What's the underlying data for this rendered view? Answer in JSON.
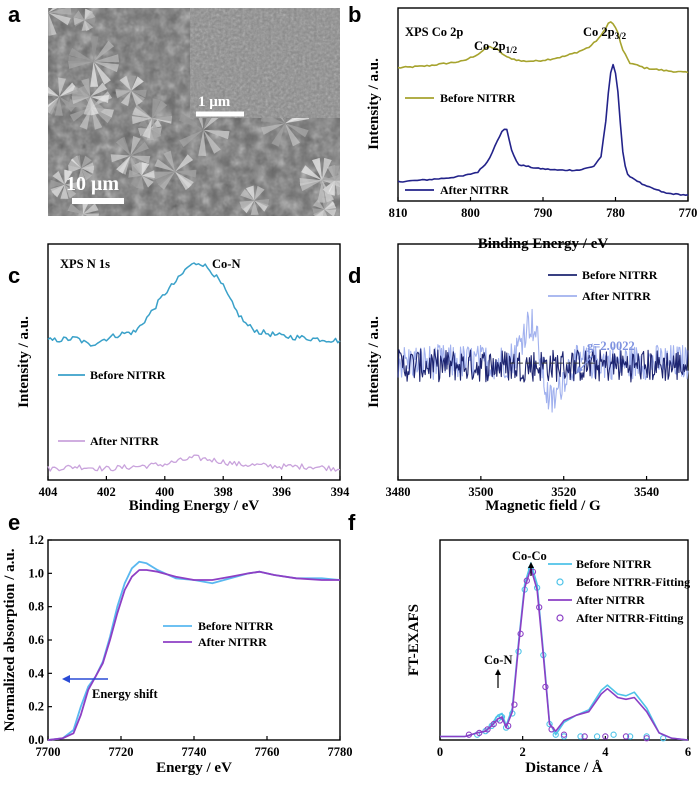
{
  "panel_labels": [
    "a",
    "b",
    "c",
    "d",
    "e",
    "f"
  ],
  "sem": {
    "main_scale": "10 μm",
    "inset_scale": "1 μm"
  },
  "chart_data": [
    {
      "id": "b",
      "type": "line",
      "title": "XPS Co 2p",
      "xlabel": "Binding Energy / eV",
      "ylabel": "Intensity / a.u.",
      "xlim": [
        810,
        770
      ],
      "xticks": [
        810,
        800,
        790,
        780,
        770
      ],
      "reversed_x": true,
      "annotations": [
        {
          "text": "Co 2p",
          "sub": "1/2",
          "x": 797
        },
        {
          "text": "Co 2p",
          "sub": "3/2",
          "x": 780.5
        }
      ],
      "series": [
        {
          "name": "Before NITRR",
          "color": "#a6a32e",
          "points": [
            [
              810,
              0.69
            ],
            [
              806,
              0.7
            ],
            [
              803,
              0.715
            ],
            [
              801,
              0.725
            ],
            [
              799,
              0.76
            ],
            [
              797.5,
              0.8
            ],
            [
              796.5,
              0.79
            ],
            [
              795,
              0.745
            ],
            [
              793,
              0.725
            ],
            [
              791,
              0.725
            ],
            [
              789,
              0.735
            ],
            [
              787,
              0.75
            ],
            [
              785,
              0.775
            ],
            [
              783.5,
              0.8
            ],
            [
              782,
              0.855
            ],
            [
              781,
              0.92
            ],
            [
              780.5,
              0.93
            ],
            [
              779.7,
              0.875
            ],
            [
              779,
              0.78
            ],
            [
              778,
              0.715
            ],
            [
              776,
              0.69
            ],
            [
              773,
              0.675
            ],
            [
              770,
              0.665
            ]
          ]
        },
        {
          "name": "After NITRR",
          "color": "#23238a",
          "points": [
            [
              810,
              0.1
            ],
            [
              806,
              0.11
            ],
            [
              803,
              0.12
            ],
            [
              801,
              0.13
            ],
            [
              799,
              0.15
            ],
            [
              797.5,
              0.21
            ],
            [
              796.5,
              0.3
            ],
            [
              795.5,
              0.37
            ],
            [
              795,
              0.37
            ],
            [
              794.3,
              0.26
            ],
            [
              793.5,
              0.19
            ],
            [
              791,
              0.17
            ],
            [
              788,
              0.16
            ],
            [
              785,
              0.16
            ],
            [
              783,
              0.18
            ],
            [
              782,
              0.23
            ],
            [
              781.3,
              0.42
            ],
            [
              780.8,
              0.65
            ],
            [
              780.2,
              0.72
            ],
            [
              779.6,
              0.55
            ],
            [
              779.1,
              0.28
            ],
            [
              778.5,
              0.14
            ],
            [
              776,
              0.08
            ],
            [
              773,
              0.04
            ],
            [
              770,
              0.03
            ]
          ]
        }
      ]
    },
    {
      "id": "c",
      "type": "line",
      "title": "XPS N 1s",
      "xlabel": "Binding Energy / eV",
      "ylabel": "Intensity / a.u.",
      "xlim": [
        404,
        394
      ],
      "xticks": [
        404,
        402,
        400,
        398,
        396,
        394
      ],
      "reversed_x": true,
      "annotations": [
        {
          "text": "Co-N",
          "x": 398.6
        }
      ],
      "series": [
        {
          "name": "Before NITRR",
          "color": "#3aa1c9",
          "points": [
            [
              404,
              0.62
            ],
            [
              403,
              0.63
            ],
            [
              402.6,
              0.6
            ],
            [
              402,
              0.63
            ],
            [
              401.5,
              0.65
            ],
            [
              401,
              0.66
            ],
            [
              400.5,
              0.74
            ],
            [
              400,
              0.83
            ],
            [
              399.5,
              0.9
            ],
            [
              399.2,
              0.95
            ],
            [
              398.8,
              0.97
            ],
            [
              398.4,
              0.93
            ],
            [
              398,
              0.86
            ],
            [
              397.6,
              0.76
            ],
            [
              397.2,
              0.69
            ],
            [
              396.8,
              0.66
            ],
            [
              396,
              0.64
            ],
            [
              395,
              0.63
            ],
            [
              394,
              0.62
            ]
          ]
        },
        {
          "name": "After NITRR",
          "color": "#c9a3dc",
          "points": [
            [
              404,
              0.05
            ],
            [
              403,
              0.06
            ],
            [
              402,
              0.05
            ],
            [
              401,
              0.06
            ],
            [
              400,
              0.07
            ],
            [
              399,
              0.1
            ],
            [
              398.4,
              0.09
            ],
            [
              397.5,
              0.07
            ],
            [
              396,
              0.06
            ],
            [
              395,
              0.06
            ],
            [
              394,
              0.05
            ]
          ]
        }
      ]
    },
    {
      "id": "d",
      "type": "line",
      "title": "",
      "xlabel": "Magnetic field / G",
      "ylabel": "Intensity / a.u.",
      "xlim": [
        3480,
        3550
      ],
      "xticks": [
        3480,
        3500,
        3520,
        3540
      ],
      "annotations": [
        {
          "text": "g=2.0022",
          "x": 3517
        }
      ],
      "series": [
        {
          "name": "Before NITRR",
          "color": "#1d2470",
          "description_value": "noisy"
        },
        {
          "name": "After NITRR",
          "color": "#a1b1ee",
          "description_value": "signal"
        }
      ]
    },
    {
      "id": "e",
      "type": "line",
      "title": "",
      "xlabel": "Energy / eV",
      "ylabel": "Normalized absorption / a.u.",
      "xlim": [
        7700,
        7780
      ],
      "ylim": [
        0.0,
        1.2
      ],
      "xticks": [
        7700,
        7720,
        7740,
        7760,
        7780
      ],
      "yticks": [
        "0.0",
        "0.2",
        "0.4",
        "0.6",
        "0.8",
        "1.0",
        "1.2"
      ],
      "annotations": [
        {
          "text": "Energy shift"
        }
      ],
      "series": [
        {
          "name": "Before NITRR",
          "color": "#5ab8f0",
          "points": [
            [
              7700,
              0.0
            ],
            [
              7704,
              0.01
            ],
            [
              7707,
              0.06
            ],
            [
              7709,
              0.2
            ],
            [
              7711,
              0.32
            ],
            [
              7713,
              0.38
            ],
            [
              7715,
              0.47
            ],
            [
              7717,
              0.62
            ],
            [
              7719,
              0.8
            ],
            [
              7721,
              0.94
            ],
            [
              7723,
              1.03
            ],
            [
              7725,
              1.07
            ],
            [
              7727,
              1.06
            ],
            [
              7730,
              1.02
            ],
            [
              7735,
              0.97
            ],
            [
              7740,
              0.96
            ],
            [
              7745,
              0.94
            ],
            [
              7750,
              0.97
            ],
            [
              7755,
              1.0
            ],
            [
              7758,
              1.01
            ],
            [
              7762,
              0.99
            ],
            [
              7768,
              0.97
            ],
            [
              7775,
              0.97
            ],
            [
              7780,
              0.96
            ]
          ]
        },
        {
          "name": "After NITRR",
          "color": "#8e3fc4",
          "points": [
            [
              7700,
              0.0
            ],
            [
              7704,
              0.01
            ],
            [
              7707,
              0.04
            ],
            [
              7709,
              0.15
            ],
            [
              7711,
              0.3
            ],
            [
              7713,
              0.38
            ],
            [
              7715,
              0.46
            ],
            [
              7717,
              0.6
            ],
            [
              7719,
              0.76
            ],
            [
              7721,
              0.9
            ],
            [
              7723,
              0.98
            ],
            [
              7725,
              1.02
            ],
            [
              7727,
              1.02
            ],
            [
              7730,
              1.01
            ],
            [
              7735,
              0.98
            ],
            [
              7740,
              0.96
            ],
            [
              7745,
              0.96
            ],
            [
              7750,
              0.98
            ],
            [
              7755,
              1.0
            ],
            [
              7758,
              1.01
            ],
            [
              7762,
              0.99
            ],
            [
              7768,
              0.97
            ],
            [
              7775,
              0.96
            ],
            [
              7780,
              0.96
            ]
          ]
        }
      ]
    },
    {
      "id": "f",
      "type": "line",
      "title": "",
      "xlabel": "Distance / Å",
      "ylabel": "FT-EXAFS",
      "xlim": [
        0,
        6
      ],
      "ylim": [
        0,
        1
      ],
      "xticks": [
        0,
        2,
        4,
        6
      ],
      "annotations": [
        {
          "text": "Co-Co",
          "x": 2.2
        },
        {
          "text": "Co-N",
          "x": 1.45
        }
      ],
      "series": [
        {
          "name": "Before NITRR",
          "color": "#4ec3e8",
          "style": "line",
          "points": [
            [
              0,
              0.02
            ],
            [
              0.6,
              0.02
            ],
            [
              0.9,
              0.04
            ],
            [
              1.1,
              0.05
            ],
            [
              1.25,
              0.09
            ],
            [
              1.4,
              0.14
            ],
            [
              1.5,
              0.15
            ],
            [
              1.6,
              0.08
            ],
            [
              1.75,
              0.18
            ],
            [
              1.9,
              0.55
            ],
            [
              2.05,
              0.88
            ],
            [
              2.2,
              1.0
            ],
            [
              2.35,
              0.88
            ],
            [
              2.5,
              0.5
            ],
            [
              2.65,
              0.1
            ],
            [
              2.8,
              0.03
            ],
            [
              3.0,
              0.1
            ],
            [
              3.3,
              0.14
            ],
            [
              3.6,
              0.17
            ],
            [
              3.9,
              0.28
            ],
            [
              4.05,
              0.31
            ],
            [
              4.3,
              0.26
            ],
            [
              4.5,
              0.25
            ],
            [
              4.7,
              0.27
            ],
            [
              5.0,
              0.18
            ],
            [
              5.3,
              0.04
            ],
            [
              5.6,
              0.01
            ],
            [
              6,
              0.0
            ]
          ]
        },
        {
          "name": "Before NITRR-Fitting",
          "color": "#4ec3e8",
          "style": "circles",
          "points": [
            [
              0.9,
              0.03
            ],
            [
              1.1,
              0.05
            ],
            [
              1.25,
              0.08
            ],
            [
              1.4,
              0.12
            ],
            [
              1.5,
              0.13
            ],
            [
              1.6,
              0.07
            ],
            [
              1.75,
              0.15
            ],
            [
              1.9,
              0.5
            ],
            [
              2.05,
              0.85
            ],
            [
              2.2,
              0.97
            ],
            [
              2.35,
              0.86
            ],
            [
              2.5,
              0.48
            ],
            [
              2.65,
              0.09
            ],
            [
              2.8,
              0.03
            ],
            [
              3.0,
              0.02
            ],
            [
              3.4,
              0.02
            ],
            [
              3.8,
              0.02
            ],
            [
              4.2,
              0.03
            ],
            [
              4.6,
              0.02
            ],
            [
              5.0,
              0.02
            ],
            [
              5.4,
              0.01
            ]
          ]
        },
        {
          "name": "After NITRR",
          "color": "#8b3fc5",
          "style": "line",
          "points": [
            [
              0,
              0.02
            ],
            [
              0.6,
              0.02
            ],
            [
              0.9,
              0.04
            ],
            [
              1.1,
              0.05
            ],
            [
              1.25,
              0.08
            ],
            [
              1.4,
              0.12
            ],
            [
              1.5,
              0.13
            ],
            [
              1.6,
              0.07
            ],
            [
              1.75,
              0.16
            ],
            [
              1.9,
              0.53
            ],
            [
              2.05,
              0.86
            ],
            [
              2.2,
              0.97
            ],
            [
              2.35,
              0.85
            ],
            [
              2.5,
              0.48
            ],
            [
              2.65,
              0.09
            ],
            [
              2.8,
              0.05
            ],
            [
              3.0,
              0.11
            ],
            [
              3.3,
              0.14
            ],
            [
              3.6,
              0.16
            ],
            [
              3.9,
              0.26
            ],
            [
              4.05,
              0.29
            ],
            [
              4.3,
              0.24
            ],
            [
              4.5,
              0.23
            ],
            [
              4.7,
              0.24
            ],
            [
              5.0,
              0.16
            ],
            [
              5.3,
              0.04
            ],
            [
              5.6,
              0.01
            ],
            [
              6,
              0.0
            ]
          ]
        },
        {
          "name": "After NITRR-Fitting",
          "color": "#8b3fc5",
          "style": "circles",
          "points": [
            [
              0.7,
              0.03
            ],
            [
              0.95,
              0.04
            ],
            [
              1.15,
              0.06
            ],
            [
              1.3,
              0.09
            ],
            [
              1.45,
              0.11
            ],
            [
              1.65,
              0.08
            ],
            [
              1.8,
              0.2
            ],
            [
              1.95,
              0.6
            ],
            [
              2.1,
              0.9
            ],
            [
              2.25,
              0.95
            ],
            [
              2.4,
              0.75
            ],
            [
              2.55,
              0.3
            ],
            [
              2.7,
              0.06
            ],
            [
              3.0,
              0.03
            ],
            [
              3.5,
              0.02
            ],
            [
              4.0,
              0.02
            ],
            [
              4.5,
              0.02
            ],
            [
              5.0,
              0.01
            ]
          ]
        }
      ]
    }
  ]
}
